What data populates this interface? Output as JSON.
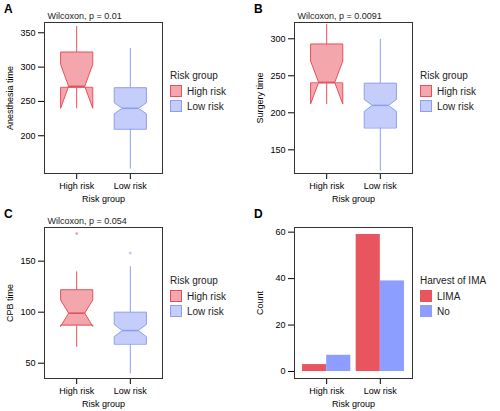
{
  "chart_data": [
    {
      "type": "box",
      "title": "A",
      "annotation": "Wilcoxon, p = 0.01",
      "x_label": "Risk group",
      "y_label": "Anesthesia time",
      "categories": [
        "High risk",
        "Low risk"
      ],
      "legend": "right",
      "legend_title": "Risk group",
      "grid": false,
      "ylim": [
        145,
        365
      ],
      "yticks": [
        200,
        250,
        300,
        350
      ],
      "series": [
        {
          "name": "High risk",
          "color": "#e8505b",
          "min": 240,
          "q1": 270,
          "median": 272,
          "q3": 322,
          "max": 360,
          "notch_low": 240,
          "notch_high": 304,
          "outliers": []
        },
        {
          "name": "Low risk",
          "color": "#8c9ef5",
          "min": 152,
          "q1": 210,
          "median": 240,
          "q3": 270,
          "max": 328,
          "notch_low": 232,
          "notch_high": 248,
          "outliers": []
        }
      ]
    },
    {
      "type": "box",
      "title": "B",
      "annotation": "Wilcoxon, p = 0.0091",
      "x_label": "Risk group",
      "y_label": "Surgery time",
      "categories": [
        "High risk",
        "Low risk"
      ],
      "legend": "right",
      "legend_title": "Risk group",
      "grid": false,
      "ylim": [
        118,
        322
      ],
      "yticks": [
        150,
        200,
        250,
        300
      ],
      "series": [
        {
          "name": "High risk",
          "color": "#e8505b",
          "min": 212,
          "q1": 240,
          "median": 241,
          "q3": 293,
          "max": 320,
          "notch_low": 212,
          "notch_high": 270,
          "outliers": []
        },
        {
          "name": "Low risk",
          "color": "#8c9ef5",
          "min": 122,
          "q1": 180,
          "median": 210,
          "q3": 240,
          "max": 300,
          "notch_low": 202,
          "notch_high": 218,
          "outliers": []
        }
      ]
    },
    {
      "type": "box",
      "title": "C",
      "annotation": "Wilcoxon, p = 0.054",
      "x_label": "Risk group",
      "y_label": "CPB time",
      "categories": [
        "High risk",
        "Low risk"
      ],
      "legend": "right",
      "legend_title": "Risk group",
      "grid": false,
      "ylim": [
        35,
        183
      ],
      "yticks": [
        50,
        100,
        150
      ],
      "series": [
        {
          "name": "High risk",
          "color": "#e8505b",
          "min": 66,
          "q1": 87,
          "median": 99,
          "q3": 122,
          "max": 140,
          "notch_low": 86,
          "notch_high": 112,
          "outliers": [
            177
          ]
        },
        {
          "name": "Low risk",
          "color": "#8c9ef5",
          "min": 40,
          "q1": 69,
          "median": 82,
          "q3": 100,
          "max": 145,
          "notch_low": 76,
          "notch_high": 88,
          "outliers": [
            158
          ]
        }
      ]
    },
    {
      "type": "bar",
      "title": "D",
      "x_label": "Risk group",
      "y_label": "Count",
      "categories": [
        "High risk",
        "Low risk"
      ],
      "legend": "right",
      "legend_title": "Harvest of IMA",
      "grid": false,
      "ylim": [
        -3,
        62
      ],
      "yticks": [
        0,
        20,
        40,
        60
      ],
      "series": [
        {
          "name": "LIMA",
          "color": "#e8555f",
          "values": [
            3,
            59
          ]
        },
        {
          "name": "No",
          "color": "#8c9eff",
          "values": [
            7,
            39
          ]
        }
      ]
    }
  ]
}
